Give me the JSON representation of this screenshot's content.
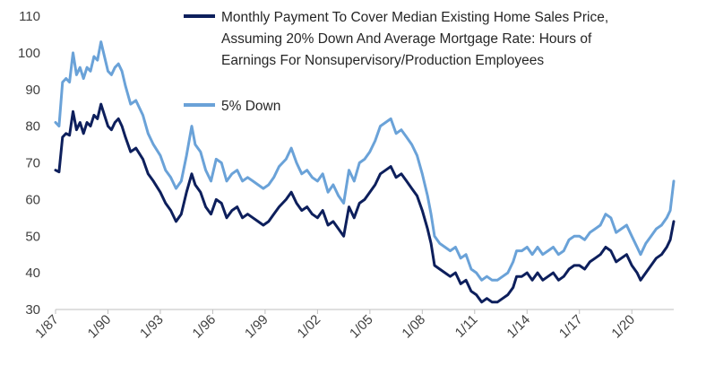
{
  "chart_data": {
    "type": "line",
    "title": "",
    "xlabel": "",
    "ylabel": "",
    "ylim": [
      30,
      110
    ],
    "yticks": [
      "30",
      "40",
      "50",
      "60",
      "70",
      "80",
      "90",
      "100",
      "110"
    ],
    "xticks": [
      "1/87",
      "1/90",
      "1/93",
      "1/96",
      "1/99",
      "1/02",
      "1/05",
      "1/08",
      "1/11",
      "1/14",
      "1/17",
      "1/20"
    ],
    "xrange": [
      1987.0,
      2022.4
    ],
    "grid": false,
    "legend_position": "top-right",
    "series": [
      {
        "name": "Monthly Payment To Cover Median Existing Home Sales Price, Assuming 20% Down And Average Mortgage Rate: Hours of Earnings For Nonsupervisory/Production Employees",
        "color": "#0d1f5c",
        "points": [
          [
            1987.0,
            68
          ],
          [
            1987.2,
            67.5
          ],
          [
            1987.4,
            77
          ],
          [
            1987.6,
            78
          ],
          [
            1987.8,
            77.5
          ],
          [
            1988.0,
            84
          ],
          [
            1988.2,
            79
          ],
          [
            1988.4,
            81
          ],
          [
            1988.6,
            78
          ],
          [
            1988.8,
            81
          ],
          [
            1989.0,
            80
          ],
          [
            1989.2,
            83
          ],
          [
            1989.4,
            82
          ],
          [
            1989.6,
            86
          ],
          [
            1989.8,
            83
          ],
          [
            1990.0,
            80
          ],
          [
            1990.2,
            79
          ],
          [
            1990.4,
            81
          ],
          [
            1990.6,
            82
          ],
          [
            1990.8,
            80
          ],
          [
            1991.0,
            77
          ],
          [
            1991.3,
            73
          ],
          [
            1991.6,
            74
          ],
          [
            1992.0,
            71
          ],
          [
            1992.3,
            67
          ],
          [
            1992.6,
            65
          ],
          [
            1993.0,
            62
          ],
          [
            1993.3,
            59
          ],
          [
            1993.6,
            57
          ],
          [
            1993.9,
            54
          ],
          [
            1994.2,
            56
          ],
          [
            1994.5,
            62
          ],
          [
            1994.8,
            67
          ],
          [
            1995.0,
            64
          ],
          [
            1995.3,
            62
          ],
          [
            1995.6,
            58
          ],
          [
            1995.9,
            56
          ],
          [
            1996.2,
            60
          ],
          [
            1996.5,
            59
          ],
          [
            1996.8,
            55
          ],
          [
            1997.1,
            57
          ],
          [
            1997.4,
            58
          ],
          [
            1997.7,
            55
          ],
          [
            1998.0,
            56
          ],
          [
            1998.3,
            55
          ],
          [
            1998.6,
            54
          ],
          [
            1998.9,
            53
          ],
          [
            1999.2,
            54
          ],
          [
            1999.5,
            56
          ],
          [
            1999.8,
            58
          ],
          [
            2000.2,
            60
          ],
          [
            2000.5,
            62
          ],
          [
            2000.8,
            59
          ],
          [
            2001.1,
            57
          ],
          [
            2001.4,
            58
          ],
          [
            2001.7,
            56
          ],
          [
            2002.0,
            55
          ],
          [
            2002.3,
            57
          ],
          [
            2002.6,
            53
          ],
          [
            2002.9,
            54
          ],
          [
            2003.2,
            52
          ],
          [
            2003.5,
            50
          ],
          [
            2003.8,
            58
          ],
          [
            2004.1,
            55
          ],
          [
            2004.4,
            59
          ],
          [
            2004.7,
            60
          ],
          [
            2005.0,
            62
          ],
          [
            2005.3,
            64
          ],
          [
            2005.6,
            67
          ],
          [
            2005.9,
            68
          ],
          [
            2006.2,
            69
          ],
          [
            2006.5,
            66
          ],
          [
            2006.8,
            67
          ],
          [
            2007.1,
            65
          ],
          [
            2007.4,
            63
          ],
          [
            2007.7,
            61
          ],
          [
            2008.0,
            57
          ],
          [
            2008.3,
            52
          ],
          [
            2008.5,
            48
          ],
          [
            2008.7,
            42
          ],
          [
            2009.0,
            41
          ],
          [
            2009.3,
            40
          ],
          [
            2009.6,
            39
          ],
          [
            2009.9,
            40
          ],
          [
            2010.2,
            37
          ],
          [
            2010.5,
            38
          ],
          [
            2010.8,
            35
          ],
          [
            2011.1,
            34
          ],
          [
            2011.4,
            32
          ],
          [
            2011.7,
            33
          ],
          [
            2012.0,
            32
          ],
          [
            2012.3,
            32
          ],
          [
            2012.6,
            33
          ],
          [
            2012.9,
            34
          ],
          [
            2013.2,
            36
          ],
          [
            2013.4,
            39
          ],
          [
            2013.7,
            39
          ],
          [
            2014.0,
            40
          ],
          [
            2014.3,
            38
          ],
          [
            2014.6,
            40
          ],
          [
            2014.9,
            38
          ],
          [
            2015.2,
            39
          ],
          [
            2015.5,
            40
          ],
          [
            2015.8,
            38
          ],
          [
            2016.1,
            39
          ],
          [
            2016.4,
            41
          ],
          [
            2016.7,
            42
          ],
          [
            2017.0,
            42
          ],
          [
            2017.3,
            41
          ],
          [
            2017.6,
            43
          ],
          [
            2017.9,
            44
          ],
          [
            2018.2,
            45
          ],
          [
            2018.5,
            47
          ],
          [
            2018.8,
            46
          ],
          [
            2019.1,
            43
          ],
          [
            2019.4,
            44
          ],
          [
            2019.7,
            45
          ],
          [
            2020.0,
            42
          ],
          [
            2020.3,
            40
          ],
          [
            2020.5,
            38
          ],
          [
            2020.8,
            40
          ],
          [
            2021.1,
            42
          ],
          [
            2021.4,
            44
          ],
          [
            2021.7,
            45
          ],
          [
            2022.0,
            47
          ],
          [
            2022.2,
            49
          ],
          [
            2022.4,
            54
          ]
        ]
      },
      {
        "name": "5% Down",
        "color": "#6aa2d8",
        "points": [
          [
            1987.0,
            81
          ],
          [
            1987.2,
            80
          ],
          [
            1987.4,
            92
          ],
          [
            1987.6,
            93
          ],
          [
            1987.8,
            92
          ],
          [
            1988.0,
            100
          ],
          [
            1988.2,
            94
          ],
          [
            1988.4,
            96
          ],
          [
            1988.6,
            93
          ],
          [
            1988.8,
            96
          ],
          [
            1989.0,
            95
          ],
          [
            1989.2,
            99
          ],
          [
            1989.4,
            98
          ],
          [
            1989.6,
            103
          ],
          [
            1989.8,
            99
          ],
          [
            1990.0,
            95
          ],
          [
            1990.2,
            94
          ],
          [
            1990.4,
            96
          ],
          [
            1990.6,
            97
          ],
          [
            1990.8,
            95
          ],
          [
            1991.0,
            91
          ],
          [
            1991.3,
            86
          ],
          [
            1991.6,
            87
          ],
          [
            1992.0,
            83
          ],
          [
            1992.3,
            78
          ],
          [
            1992.6,
            75
          ],
          [
            1993.0,
            72
          ],
          [
            1993.3,
            68
          ],
          [
            1993.6,
            66
          ],
          [
            1993.9,
            63
          ],
          [
            1994.2,
            65
          ],
          [
            1994.5,
            72
          ],
          [
            1994.8,
            80
          ],
          [
            1995.0,
            75
          ],
          [
            1995.3,
            73
          ],
          [
            1995.6,
            68
          ],
          [
            1995.9,
            65
          ],
          [
            1996.2,
            71
          ],
          [
            1996.5,
            70
          ],
          [
            1996.8,
            65
          ],
          [
            1997.1,
            67
          ],
          [
            1997.4,
            68
          ],
          [
            1997.7,
            65
          ],
          [
            1998.0,
            66
          ],
          [
            1998.3,
            65
          ],
          [
            1998.6,
            64
          ],
          [
            1998.9,
            63
          ],
          [
            1999.2,
            64
          ],
          [
            1999.5,
            66
          ],
          [
            1999.8,
            69
          ],
          [
            2000.2,
            71
          ],
          [
            2000.5,
            74
          ],
          [
            2000.8,
            70
          ],
          [
            2001.1,
            67
          ],
          [
            2001.4,
            68
          ],
          [
            2001.7,
            66
          ],
          [
            2002.0,
            65
          ],
          [
            2002.3,
            67
          ],
          [
            2002.6,
            62
          ],
          [
            2002.9,
            64
          ],
          [
            2003.2,
            61
          ],
          [
            2003.5,
            59
          ],
          [
            2003.8,
            68
          ],
          [
            2004.1,
            65
          ],
          [
            2004.4,
            70
          ],
          [
            2004.7,
            71
          ],
          [
            2005.0,
            73
          ],
          [
            2005.3,
            76
          ],
          [
            2005.6,
            80
          ],
          [
            2005.9,
            81
          ],
          [
            2006.2,
            82
          ],
          [
            2006.5,
            78
          ],
          [
            2006.8,
            79
          ],
          [
            2007.1,
            77
          ],
          [
            2007.4,
            75
          ],
          [
            2007.7,
            72
          ],
          [
            2008.0,
            67
          ],
          [
            2008.3,
            61
          ],
          [
            2008.5,
            56
          ],
          [
            2008.7,
            50
          ],
          [
            2009.0,
            48
          ],
          [
            2009.3,
            47
          ],
          [
            2009.6,
            46
          ],
          [
            2009.9,
            47
          ],
          [
            2010.2,
            44
          ],
          [
            2010.5,
            45
          ],
          [
            2010.8,
            41
          ],
          [
            2011.1,
            40
          ],
          [
            2011.4,
            38
          ],
          [
            2011.7,
            39
          ],
          [
            2012.0,
            38
          ],
          [
            2012.3,
            38
          ],
          [
            2012.6,
            39
          ],
          [
            2012.9,
            40
          ],
          [
            2013.2,
            43
          ],
          [
            2013.4,
            46
          ],
          [
            2013.7,
            46
          ],
          [
            2014.0,
            47
          ],
          [
            2014.3,
            45
          ],
          [
            2014.6,
            47
          ],
          [
            2014.9,
            45
          ],
          [
            2015.2,
            46
          ],
          [
            2015.5,
            47
          ],
          [
            2015.8,
            45
          ],
          [
            2016.1,
            46
          ],
          [
            2016.4,
            49
          ],
          [
            2016.7,
            50
          ],
          [
            2017.0,
            50
          ],
          [
            2017.3,
            49
          ],
          [
            2017.6,
            51
          ],
          [
            2017.9,
            52
          ],
          [
            2018.2,
            53
          ],
          [
            2018.5,
            56
          ],
          [
            2018.8,
            55
          ],
          [
            2019.1,
            51
          ],
          [
            2019.4,
            52
          ],
          [
            2019.7,
            53
          ],
          [
            2020.0,
            50
          ],
          [
            2020.3,
            47
          ],
          [
            2020.5,
            45
          ],
          [
            2020.8,
            48
          ],
          [
            2021.1,
            50
          ],
          [
            2021.4,
            52
          ],
          [
            2021.7,
            53
          ],
          [
            2022.0,
            55
          ],
          [
            2022.2,
            57
          ],
          [
            2022.4,
            65
          ]
        ]
      }
    ]
  },
  "legend": {
    "series1_lines": [
      "Monthly Payment To Cover Median Existing Home Sales Price,",
      "Assuming 20% Down And Average Mortgage Rate: Hours of",
      "Earnings For Nonsupervisory/Production Employees"
    ],
    "series2_label": "5% Down"
  }
}
